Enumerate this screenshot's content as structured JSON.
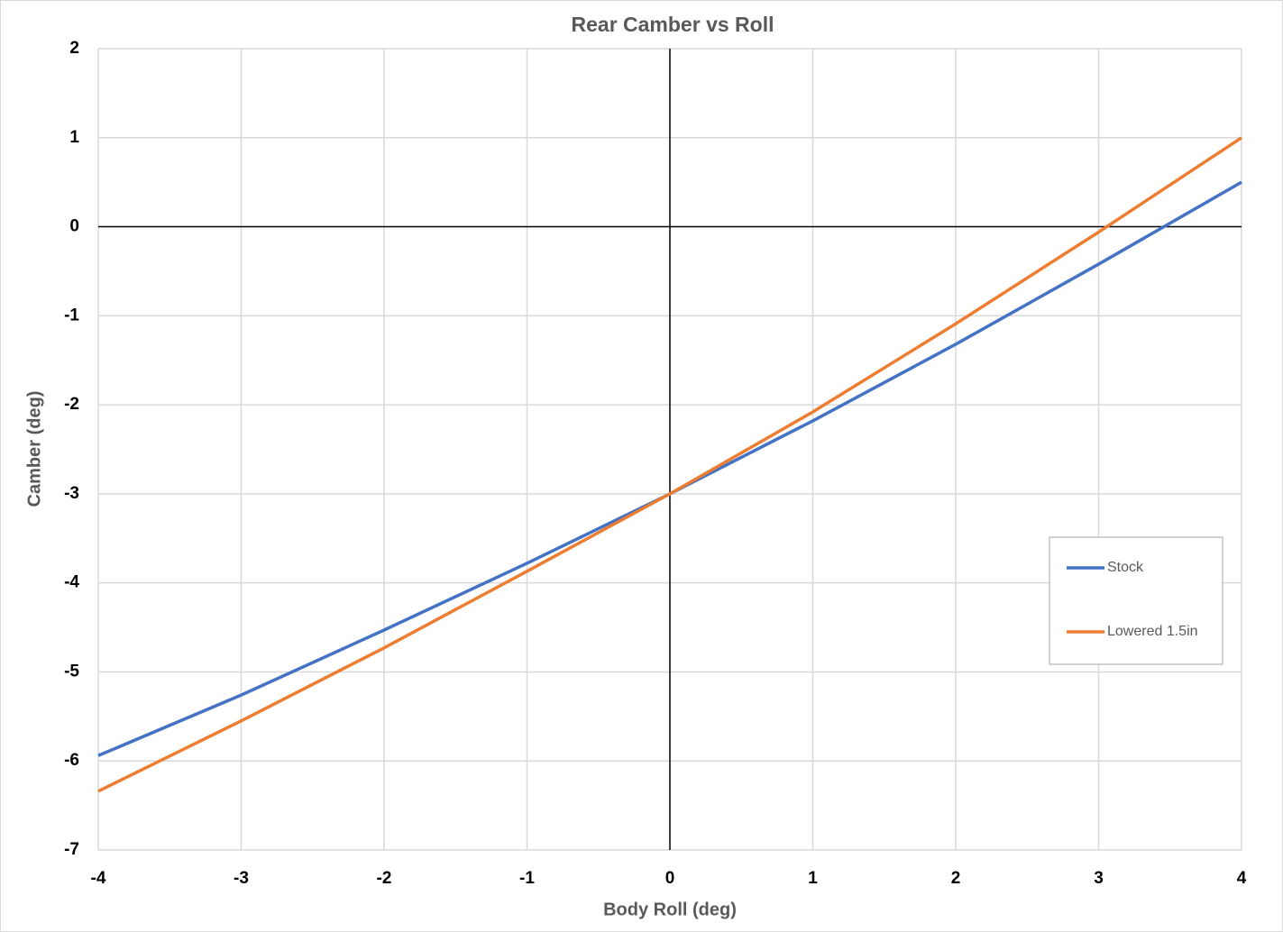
{
  "chart_data": {
    "type": "line",
    "title": "Rear Camber vs Roll",
    "x_label": "Body Roll (deg)",
    "y_label": "Camber (deg)",
    "x": [
      -4,
      -3,
      -2,
      -1,
      0,
      1,
      2,
      3,
      4
    ],
    "series": [
      {
        "name": "Stock",
        "color": "#4472c4",
        "values": [
          -5.94,
          -5.26,
          -4.53,
          -3.78,
          -3,
          -2.18,
          -1.32,
          -0.42,
          0.5
        ]
      },
      {
        "name": "Lowered 1.5in",
        "color": "#ed7d31",
        "values": [
          -6.34,
          -5.55,
          -4.73,
          -3.87,
          -3,
          -2.08,
          -1.09,
          -0.06,
          1.0
        ]
      }
    ],
    "xlim": [
      -4,
      4
    ],
    "xticks": [
      -4,
      -3,
      -2,
      -1,
      0,
      1,
      2,
      3,
      4
    ],
    "ylim": [
      -7,
      2
    ],
    "yticks": [
      -7,
      -6,
      -5,
      -4,
      -3,
      -2,
      -1,
      0,
      1,
      2
    ],
    "grid": true,
    "zero_lines": true,
    "legend": "right"
  }
}
